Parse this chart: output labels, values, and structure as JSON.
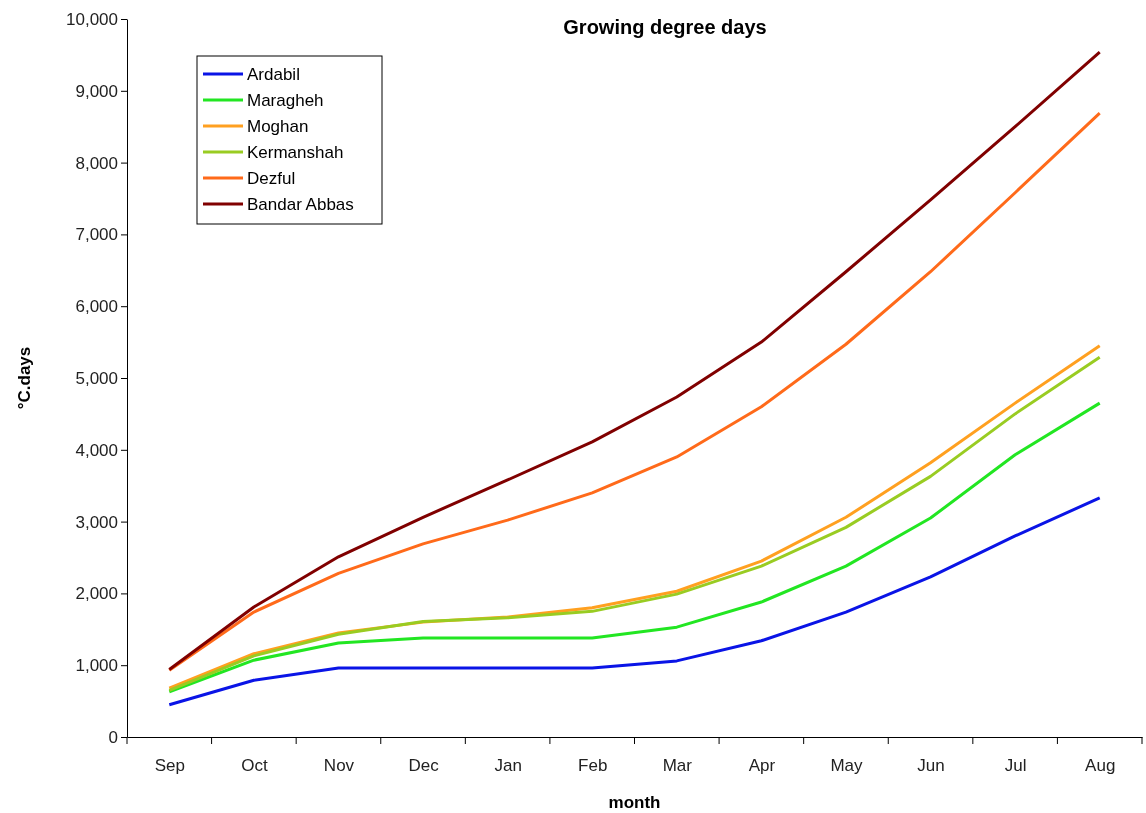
{
  "chart_data": {
    "type": "line",
    "title": "Growing degree days",
    "xlabel": "month",
    "ylabel": "°C.days",
    "categories": [
      "Sep",
      "Oct",
      "Nov",
      "Dec",
      "Jan",
      "Feb",
      "Mar",
      "Apr",
      "May",
      "Jun",
      "Jul",
      "Aug"
    ],
    "ylim": [
      0,
      10000
    ],
    "yticks": [
      {
        "value": 0,
        "label": "0"
      },
      {
        "value": 1000,
        "label": "1,000"
      },
      {
        "value": 2000,
        "label": "2,000"
      },
      {
        "value": 3000,
        "label": "3,000"
      },
      {
        "value": 4000,
        "label": "4,000"
      },
      {
        "value": 5000,
        "label": "5,000"
      },
      {
        "value": 6000,
        "label": "6,000"
      },
      {
        "value": 7000,
        "label": "7,000"
      },
      {
        "value": 8000,
        "label": "8,000"
      },
      {
        "value": 9000,
        "label": "9,000"
      },
      {
        "value": 10000,
        "label": "10,000"
      }
    ],
    "grid": false,
    "legend": "top left",
    "marker": "none",
    "line_style": "solid",
    "series": [
      {
        "name": "Ardabil",
        "color": "#0a14e6",
        "values": [
          450,
          790,
          960,
          960,
          960,
          960,
          1060,
          1340,
          1740,
          2230,
          2800,
          3330
        ]
      },
      {
        "name": "Maragheh",
        "color": "#22e622",
        "values": [
          630,
          1070,
          1310,
          1380,
          1380,
          1380,
          1530,
          1880,
          2380,
          3050,
          3930,
          4650
        ]
      },
      {
        "name": "Moghan",
        "color": "#ffa020",
        "values": [
          680,
          1160,
          1450,
          1600,
          1670,
          1800,
          2030,
          2450,
          3060,
          3820,
          4650,
          5450
        ]
      },
      {
        "name": "Kermanshah",
        "color": "#99cc22",
        "values": [
          650,
          1130,
          1430,
          1610,
          1660,
          1750,
          1990,
          2380,
          2920,
          3630,
          4500,
          5290
        ]
      },
      {
        "name": "Dezful",
        "color": "#ff6a1a",
        "values": [
          930,
          1740,
          2280,
          2690,
          3020,
          3400,
          3900,
          4600,
          5470,
          6480,
          7580,
          8690
        ]
      },
      {
        "name": "Bandar Abbas",
        "color": "#800000",
        "values": [
          940,
          1810,
          2510,
          3060,
          3580,
          4110,
          4735,
          5500,
          6480,
          7480,
          8500,
          9540
        ]
      }
    ]
  }
}
